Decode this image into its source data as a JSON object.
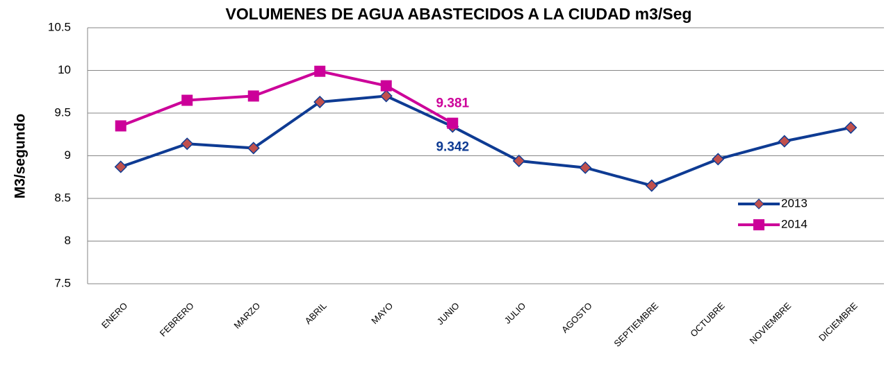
{
  "chart_data": {
    "type": "line",
    "title": "VOLUMENES DE AGUA ABASTECIDOS A LA CIUDAD m3/Seg",
    "y_label": "M3/segundo",
    "categories": [
      "ENERO",
      "FEBRERO",
      "MARZO",
      "ABRIL",
      "MAYO",
      "JUNIO",
      "JULIO",
      "AGOSTO",
      "SEPTIEMBRE",
      "OCTUBRE",
      "NOVIEMBRE",
      "DICIEMBRE"
    ],
    "series": [
      {
        "name": "2013",
        "color": "#0E3B93",
        "marker": "diamond",
        "marker_color": "#C0504D",
        "values": [
          8.87,
          9.14,
          9.09,
          9.63,
          9.7,
          9.342,
          8.94,
          8.86,
          8.65,
          8.96,
          9.17,
          9.33
        ],
        "value_labels": [
          null,
          null,
          null,
          null,
          null,
          "9.342",
          null,
          null,
          null,
          null,
          null,
          null
        ]
      },
      {
        "name": "2014",
        "color": "#CC0099",
        "marker": "square",
        "marker_color": "#CC0099",
        "values": [
          9.35,
          9.65,
          9.7,
          9.99,
          9.82,
          9.381,
          null,
          null,
          null,
          null,
          null,
          null
        ],
        "value_labels": [
          null,
          null,
          null,
          null,
          null,
          "9.381",
          null,
          null,
          null,
          null,
          null,
          null
        ]
      }
    ],
    "ylim": [
      7.5,
      10.5
    ],
    "yticks": [
      7.5,
      8,
      8.5,
      9,
      9.5,
      10,
      10.5
    ],
    "grid": true,
    "legend": "right"
  }
}
